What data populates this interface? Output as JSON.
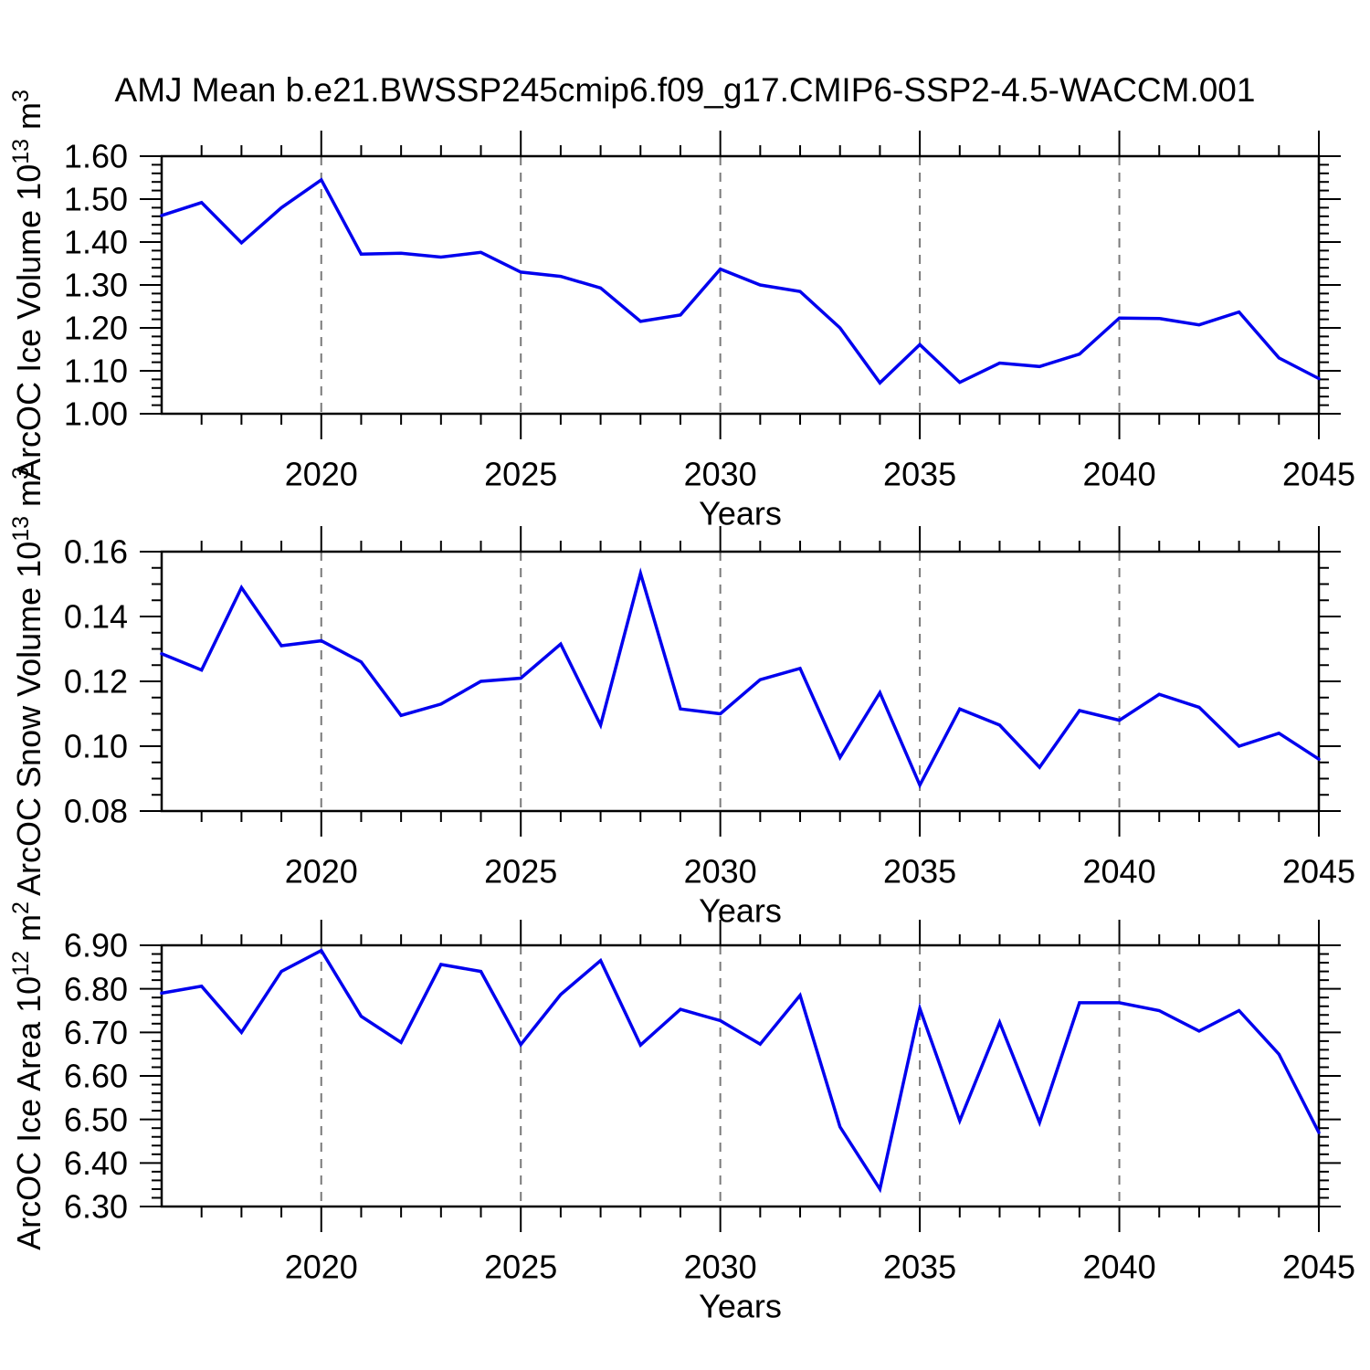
{
  "title": "AMJ Mean b.e21.BWSSP245cmip6.f09_g17.CMIP6-SSP2-4.5-WACCM.001",
  "colors": {
    "line": "#0000ee",
    "axis": "#000000",
    "grid": "#7a7a7a",
    "text": "#000000"
  },
  "x_axis": {
    "label": "Years",
    "start": 2016,
    "end": 2045,
    "major_ticks": [
      2020,
      2025,
      2030,
      2035,
      2040,
      2045
    ],
    "major_tick_labels": [
      "2020",
      "2025",
      "2030",
      "2035",
      "2040",
      "2045"
    ],
    "grid_years": [
      2020,
      2025,
      2030,
      2035,
      2040
    ],
    "minor_step": 1,
    "years": [
      2016,
      2017,
      2018,
      2019,
      2020,
      2021,
      2022,
      2023,
      2024,
      2025,
      2026,
      2027,
      2028,
      2029,
      2030,
      2031,
      2032,
      2033,
      2034,
      2035,
      2036,
      2037,
      2038,
      2039,
      2040,
      2041,
      2042,
      2043,
      2044,
      2045
    ]
  },
  "chart_data": [
    {
      "type": "line",
      "name": "ice-volume",
      "ylabel_text": "ArcOC Ice Volume 10^13 m^3",
      "ylabel_parts": [
        {
          "t": "ArcOC Ice Volume 10",
          "sup": false
        },
        {
          "t": "13",
          "sup": true
        },
        {
          "t": " m",
          "sup": false
        },
        {
          "t": "3",
          "sup": true
        }
      ],
      "xlabel": "Years",
      "ylim": [
        1.0,
        1.6
      ],
      "ymajor": 0.1,
      "yminor": 0.02,
      "ytick_labels": [
        "1.00",
        "1.10",
        "1.20",
        "1.30",
        "1.40",
        "1.50",
        "1.60"
      ],
      "values": [
        1.462,
        1.492,
        1.398,
        1.48,
        1.545,
        1.372,
        1.374,
        1.365,
        1.376,
        1.33,
        1.32,
        1.293,
        1.215,
        1.23,
        1.337,
        1.3,
        1.285,
        1.2,
        1.072,
        1.161,
        1.073,
        1.118,
        1.11,
        1.139,
        1.223,
        1.222,
        1.207,
        1.237,
        1.13,
        1.082
      ]
    },
    {
      "type": "line",
      "name": "snow-volume",
      "ylabel_text": "ArcOC Snow Volume 10^13 m^3",
      "ylabel_parts": [
        {
          "t": "ArcOC Snow Volume 10",
          "sup": false
        },
        {
          "t": "13",
          "sup": true
        },
        {
          "t": " m",
          "sup": false
        },
        {
          "t": "3",
          "sup": true
        }
      ],
      "xlabel": "Years",
      "ylim": [
        0.08,
        0.16
      ],
      "ymajor": 0.02,
      "yminor": 0.005,
      "ytick_labels": [
        "0.08",
        "0.10",
        "0.12",
        "0.14",
        "0.16"
      ],
      "values": [
        0.1285,
        0.1235,
        0.1489,
        0.131,
        0.1325,
        0.126,
        0.1095,
        0.113,
        0.12,
        0.121,
        0.1315,
        0.1065,
        0.1533,
        0.1115,
        0.11,
        0.1205,
        0.124,
        0.0965,
        0.1165,
        0.088,
        0.1115,
        0.1065,
        0.0935,
        0.111,
        0.108,
        0.116,
        0.112,
        0.1,
        0.104,
        0.096
      ]
    },
    {
      "type": "line",
      "name": "ice-area",
      "ylabel_text": "ArcOC Ice Area 10^12 m^2",
      "ylabel_parts": [
        {
          "t": "ArcOC Ice Area 10",
          "sup": false
        },
        {
          "t": "12",
          "sup": true
        },
        {
          "t": " m",
          "sup": false
        },
        {
          "t": "2",
          "sup": true
        }
      ],
      "xlabel": "Years",
      "ylim": [
        6.3,
        6.9
      ],
      "ymajor": 0.1,
      "yminor": 0.02,
      "ytick_labels": [
        "6.30",
        "6.40",
        "6.50",
        "6.60",
        "6.70",
        "6.80",
        "6.90"
      ],
      "values": [
        6.79,
        6.806,
        6.7,
        6.84,
        6.888,
        6.737,
        6.677,
        6.856,
        6.84,
        6.672,
        6.787,
        6.865,
        6.671,
        6.753,
        6.727,
        6.673,
        6.785,
        6.483,
        6.34,
        6.755,
        6.497,
        6.723,
        6.493,
        6.768,
        6.768,
        6.75,
        6.703,
        6.75,
        6.65,
        6.47
      ]
    }
  ]
}
